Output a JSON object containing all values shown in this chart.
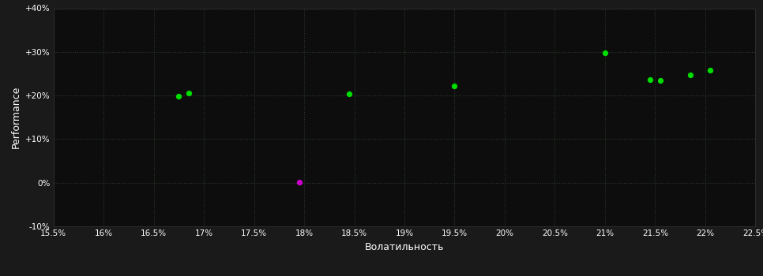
{
  "title": "",
  "xlabel": "Волатильность",
  "ylabel": "Performance",
  "background_color": "#1a1a1a",
  "plot_bg_color": "#0d0d0d",
  "text_color": "#ffffff",
  "xmin": 0.155,
  "xmax": 0.225,
  "ymin": -0.1,
  "ymax": 0.4,
  "xticks": [
    0.155,
    0.16,
    0.165,
    0.17,
    0.175,
    0.18,
    0.185,
    0.19,
    0.195,
    0.2,
    0.205,
    0.21,
    0.215,
    0.22,
    0.225
  ],
  "yticks": [
    -0.1,
    0.0,
    0.1,
    0.2,
    0.3,
    0.4
  ],
  "ytick_labels": [
    "-10%",
    "0%",
    "+10%",
    "+20%",
    "+30%",
    "+40%"
  ],
  "xtick_labels": [
    "15.5%",
    "16%",
    "16.5%",
    "17%",
    "17.5%",
    "18%",
    "18.5%",
    "19%",
    "19.5%",
    "20%",
    "20.5%",
    "21%",
    "21.5%",
    "22%",
    "22.5%"
  ],
  "green_points": [
    [
      0.1675,
      0.199
    ],
    [
      0.1685,
      0.206
    ],
    [
      0.1845,
      0.203
    ],
    [
      0.195,
      0.221
    ],
    [
      0.21,
      0.297
    ],
    [
      0.2145,
      0.237
    ],
    [
      0.2155,
      0.234
    ],
    [
      0.2185,
      0.248
    ],
    [
      0.2205,
      0.258
    ]
  ],
  "magenta_points": [
    [
      0.1795,
      0.002
    ]
  ],
  "green_color": "#00dd00",
  "magenta_color": "#cc00cc",
  "point_size": 18
}
